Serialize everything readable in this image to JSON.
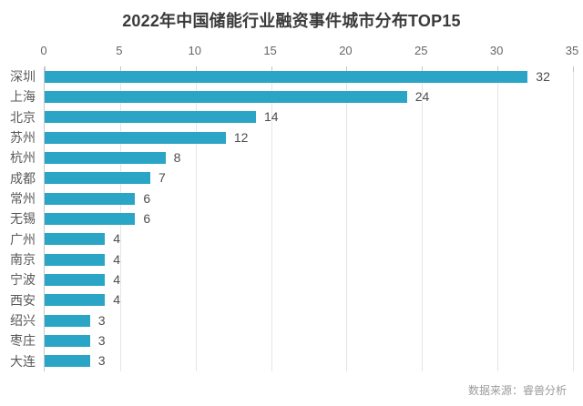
{
  "title": "2022年中国储能行业融资事件城市分布TOP15",
  "source": "数据来源：睿兽分析",
  "colors": {
    "bar": "#2ba5c6",
    "title_text": "#3a3a3a",
    "axis_label": "#666666",
    "category_label": "#595959",
    "value_label": "#4d4d4d",
    "gridline": "#e5e5e5",
    "axis_line": "#c9c9c9",
    "source_text": "#9b9b9b",
    "background": "#ffffff"
  },
  "chart_data": {
    "type": "bar",
    "orientation": "horizontal",
    "title": "2022年中国储能行业融资事件城市分布TOP15",
    "categories": [
      "深圳",
      "上海",
      "北京",
      "苏州",
      "杭州",
      "成都",
      "常州",
      "无锡",
      "广州",
      "南京",
      "宁波",
      "西安",
      "绍兴",
      "枣庄",
      "大连"
    ],
    "values": [
      32,
      24,
      14,
      12,
      8,
      7,
      6,
      6,
      4,
      4,
      4,
      4,
      3,
      3,
      3
    ],
    "value_labels_shown": true,
    "xlabel": "",
    "ylabel": "",
    "xlim": [
      0,
      35
    ],
    "x_ticks": [
      0,
      5,
      10,
      15,
      20,
      25,
      30,
      35
    ],
    "x_axis_position": "top",
    "grid": "vertical",
    "legend": "none"
  }
}
